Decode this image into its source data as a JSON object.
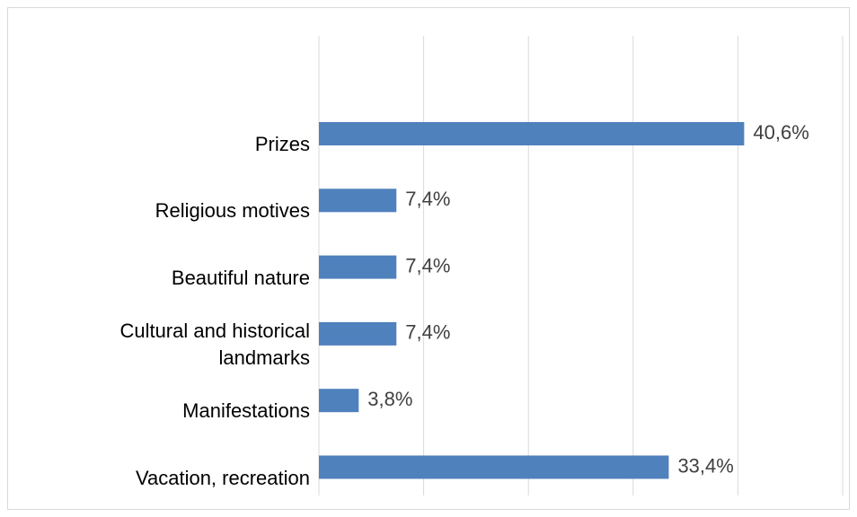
{
  "chart_data": {
    "type": "hbar",
    "categories": [
      "Prizes",
      "Religious motives",
      "Beautiful nature",
      "Cultural and historical landmarks",
      "Manifestations",
      "Vacation, recreation"
    ],
    "values": [
      40.6,
      7.4,
      7.4,
      7.4,
      3.8,
      33.4
    ],
    "value_labels": [
      "40,6%",
      "7,4%",
      "7,4%",
      "7,4%",
      "3,8%",
      "33,4%"
    ],
    "color": "#4f81bd",
    "xlim": [
      0,
      50
    ],
    "xticks": [
      0,
      10,
      20,
      30,
      40,
      50
    ],
    "grid": true
  }
}
